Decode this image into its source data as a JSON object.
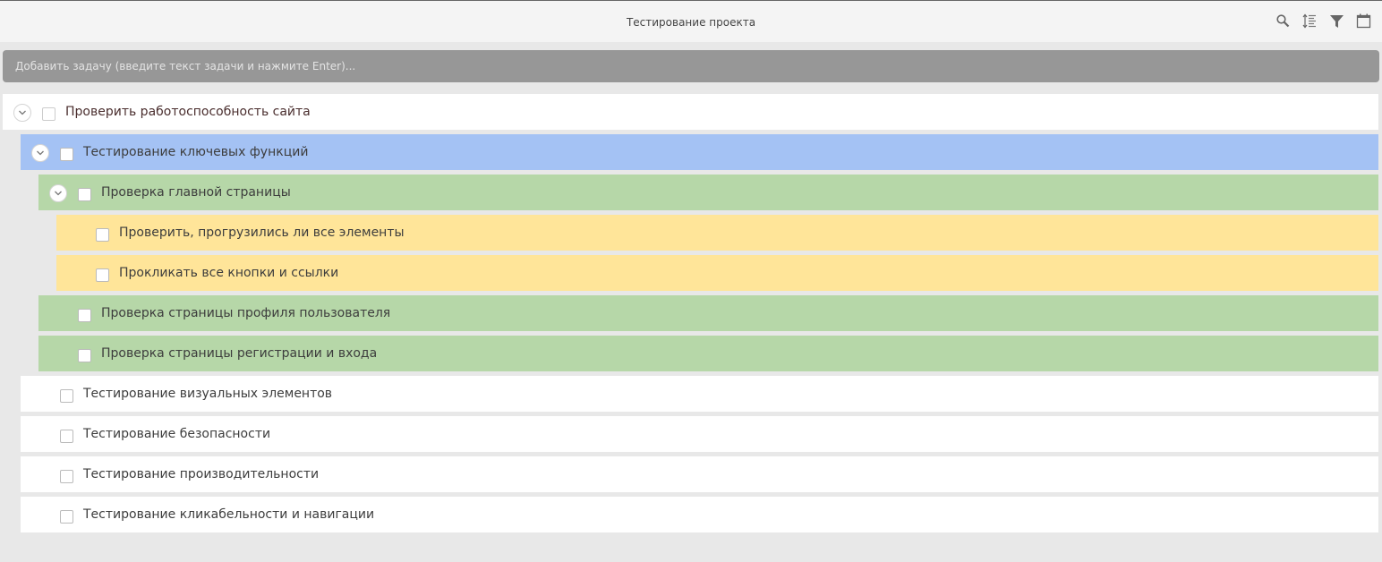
{
  "header": {
    "title": "Тестирование проекта",
    "icons": [
      "search-icon",
      "sort-icon",
      "filter-icon",
      "calendar-icon"
    ]
  },
  "add_task": {
    "placeholder": "Добавить задачу (введите текст задачи и нажмите Enter)..."
  },
  "colors": {
    "level1_selected": "#a4c2f4",
    "level2": "#b6d7a8",
    "level3": "#ffe599",
    "default": "#ffffff"
  },
  "tasks": [
    {
      "label": "Проверить работоспособность сайта",
      "level": 0,
      "expandable": true,
      "color": "#ffffff",
      "checked": false
    },
    {
      "label": "Тестирование ключевых функций",
      "level": 1,
      "expandable": true,
      "color": "#a4c2f4",
      "checked": false
    },
    {
      "label": "Проверка главной страницы",
      "level": 2,
      "expandable": true,
      "color": "#b6d7a8",
      "checked": false
    },
    {
      "label": "Проверить, прогрузились ли все элементы",
      "level": 3,
      "expandable": false,
      "color": "#ffe599",
      "checked": false
    },
    {
      "label": "Прокликать все кнопки и ссылки",
      "level": 3,
      "expandable": false,
      "color": "#ffe599",
      "checked": false
    },
    {
      "label": "Проверка страницы профиля пользователя",
      "level": 2,
      "expandable": false,
      "color": "#b6d7a8",
      "checked": false
    },
    {
      "label": "Проверка страницы регистрации и входа",
      "level": 2,
      "expandable": false,
      "color": "#b6d7a8",
      "checked": false
    },
    {
      "label": "Тестирование визуальных элементов",
      "level": 1,
      "expandable": false,
      "color": "#ffffff",
      "checked": false
    },
    {
      "label": "Тестирование безопасности",
      "level": 1,
      "expandable": false,
      "color": "#ffffff",
      "checked": false
    },
    {
      "label": "Тестирование производительности",
      "level": 1,
      "expandable": false,
      "color": "#ffffff",
      "checked": false
    },
    {
      "label": "Тестирование кликабельности и навигации",
      "level": 1,
      "expandable": false,
      "color": "#ffffff",
      "checked": false
    }
  ]
}
